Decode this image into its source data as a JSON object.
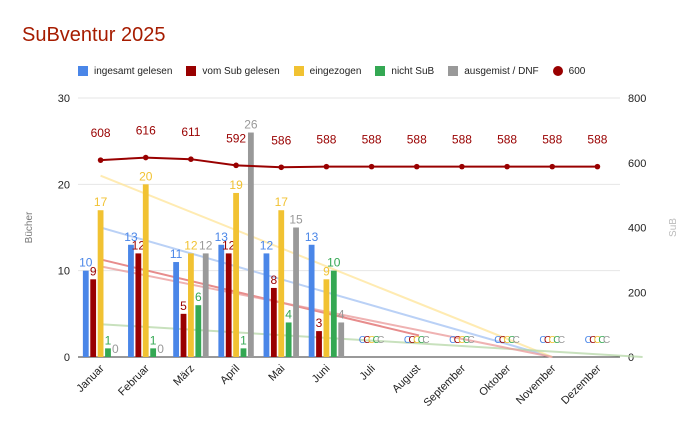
{
  "chart_data": {
    "type": "bar",
    "title": "SuBventur 2025",
    "categories": [
      "Januar",
      "Februar",
      "März",
      "April",
      "Mai",
      "Juni",
      "Juli",
      "August",
      "September",
      "Oktober",
      "November",
      "Dezember"
    ],
    "ylabel": "Bücher",
    "y2label": "SuB",
    "ylim": [
      0,
      30
    ],
    "y2lim": [
      0,
      800
    ],
    "yticks": [
      "0",
      "10",
      "20",
      "30"
    ],
    "y2ticks": [
      "0",
      "200",
      "400",
      "600",
      "800"
    ],
    "grid": true,
    "legend_position": "top",
    "series": [
      {
        "name": "ingesamt gelesen",
        "color": "#4a86e8",
        "values": [
          10,
          13,
          11,
          13,
          12,
          13,
          null,
          null,
          null,
          null,
          null,
          null
        ],
        "labels": [
          "10",
          "13",
          "11",
          "13",
          "12",
          "13",
          "C",
          "C",
          "C",
          "C",
          "C",
          "C"
        ]
      },
      {
        "name": "vom Sub gelesen",
        "color": "#990000",
        "values": [
          9,
          12,
          5,
          12,
          8,
          3,
          null,
          null,
          null,
          null,
          null,
          null
        ],
        "labels": [
          "9",
          "12",
          "5",
          "12",
          "8",
          "3",
          "C",
          "C",
          "C",
          "C",
          "C",
          "C"
        ]
      },
      {
        "name": "eingezogen",
        "color": "#f1c232",
        "values": [
          17,
          20,
          12,
          19,
          17,
          9,
          null,
          null,
          null,
          null,
          null,
          null
        ],
        "labels": [
          "17",
          "20",
          "12",
          "19",
          "17",
          "9",
          "C",
          "C",
          "C",
          "C",
          "C",
          "C"
        ]
      },
      {
        "name": "nicht SuB",
        "color": "#34a853",
        "values": [
          1,
          1,
          6,
          1,
          4,
          10,
          null,
          null,
          null,
          null,
          null,
          null
        ],
        "labels": [
          "1",
          "1",
          "6",
          "1",
          "4",
          "10",
          "C",
          "C",
          "C",
          "C",
          "C",
          "C"
        ]
      },
      {
        "name": "ausgemist / DNF",
        "color": "#999999",
        "values": [
          0,
          0,
          12,
          26,
          15,
          4,
          null,
          null,
          null,
          null,
          null,
          null
        ],
        "labels": [
          "0",
          "0",
          "12",
          "26",
          "15",
          "4",
          "C",
          "C",
          "C",
          "C",
          "C",
          "C"
        ]
      }
    ],
    "line_series": {
      "name": "600",
      "color": "#990000",
      "axis": "right",
      "values": [
        608,
        616,
        611,
        592,
        586,
        588,
        588,
        588,
        588,
        588,
        588,
        588
      ],
      "labels": [
        "608",
        "616",
        "611",
        "592",
        "586",
        "588",
        "588",
        "588",
        "588",
        "588",
        "588",
        "588"
      ]
    },
    "trendlines": [
      {
        "series": "ingesamt gelesen",
        "color": "#a4c2f4",
        "start": [
          0,
          15
        ],
        "end": [
          10,
          0
        ]
      },
      {
        "series": "vom Sub gelesen",
        "color": "#e06666",
        "start": [
          0,
          11.3
        ],
        "end": [
          7.05,
          2.5
        ]
      },
      {
        "series": "eingezogen",
        "color": "#ffe599",
        "start": [
          0,
          21
        ],
        "end": [
          10,
          0
        ]
      },
      {
        "series": "nicht SuB",
        "color": "#b6d7a8",
        "start": [
          0,
          3.8
        ],
        "end": [
          12,
          0
        ]
      },
      {
        "series": "ausgemist / DNF",
        "color": "#ea9999",
        "start": [
          0,
          10.5
        ],
        "end": [
          10,
          0
        ]
      }
    ]
  }
}
